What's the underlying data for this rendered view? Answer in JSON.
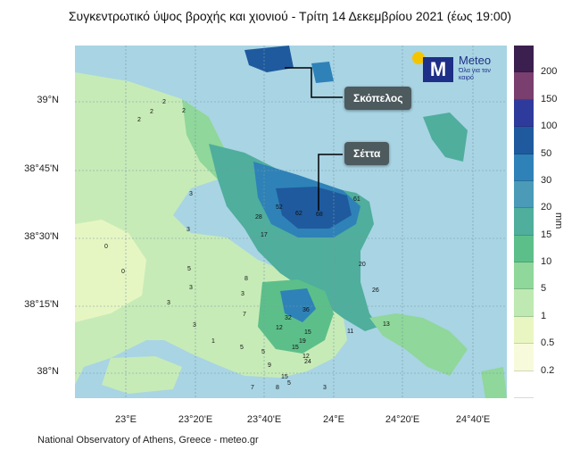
{
  "title": "Συγκεντρωτικό ύψος βροχής και χιονιού - Τρίτη 14 Δεκεμβρίου 2021 (έως 19:00)",
  "logo": {
    "name": "Meteo",
    "tagline": "Όλα για τον καιρό"
  },
  "callouts": {
    "skopelos": "Σκόπελος",
    "setta": "Σέττα"
  },
  "latitude_labels": [
    "39°N",
    "38°45'N",
    "38°30'N",
    "38°15'N",
    "38°N"
  ],
  "longitude_labels": [
    "23°E",
    "23°20'E",
    "23°40'E",
    "24°E",
    "24°20'E",
    "24°40'E"
  ],
  "colorbar": {
    "unit": "mm",
    "levels": [
      "200",
      "150",
      "100",
      "50",
      "30",
      "20",
      "15",
      "10",
      "5",
      "1",
      "0.5",
      "0.2"
    ],
    "colors": [
      "#3b1f4f",
      "#7a3f6e",
      "#2f3b9c",
      "#1f5a9e",
      "#2e82b8",
      "#4a9ab8",
      "#4fae9c",
      "#5cbf8a",
      "#8fd79a",
      "#bfe9b2",
      "#eaf6c2",
      "#f7fbdc",
      "#ffffff"
    ]
  },
  "map_values": [
    {
      "v": "2"
    },
    {
      "v": "2"
    },
    {
      "v": "2"
    },
    {
      "v": "2"
    },
    {
      "v": "3"
    },
    {
      "v": "3"
    },
    {
      "v": "0"
    },
    {
      "v": "0"
    },
    {
      "v": "5"
    },
    {
      "v": "3"
    },
    {
      "v": "3"
    },
    {
      "v": "8"
    },
    {
      "v": "3"
    },
    {
      "v": "3"
    },
    {
      "v": "1"
    },
    {
      "v": "5"
    },
    {
      "v": "7"
    },
    {
      "v": "12"
    },
    {
      "v": "52"
    },
    {
      "v": "62"
    },
    {
      "v": "68"
    },
    {
      "v": "61"
    },
    {
      "v": "28"
    },
    {
      "v": "17"
    },
    {
      "v": "20"
    },
    {
      "v": "26"
    },
    {
      "v": "13"
    },
    {
      "v": "36"
    },
    {
      "v": "32"
    },
    {
      "v": "15"
    },
    {
      "v": "19"
    },
    {
      "v": "15"
    },
    {
      "v": "12"
    },
    {
      "v": "24"
    },
    {
      "v": "15"
    },
    {
      "v": "8"
    },
    {
      "v": "5"
    },
    {
      "v": "3"
    },
    {
      "v": "7"
    },
    {
      "v": "5"
    },
    {
      "v": "11"
    },
    {
      "v": "9"
    }
  ],
  "footer": "National Observatory of Athens, Greece - meteo.gr"
}
